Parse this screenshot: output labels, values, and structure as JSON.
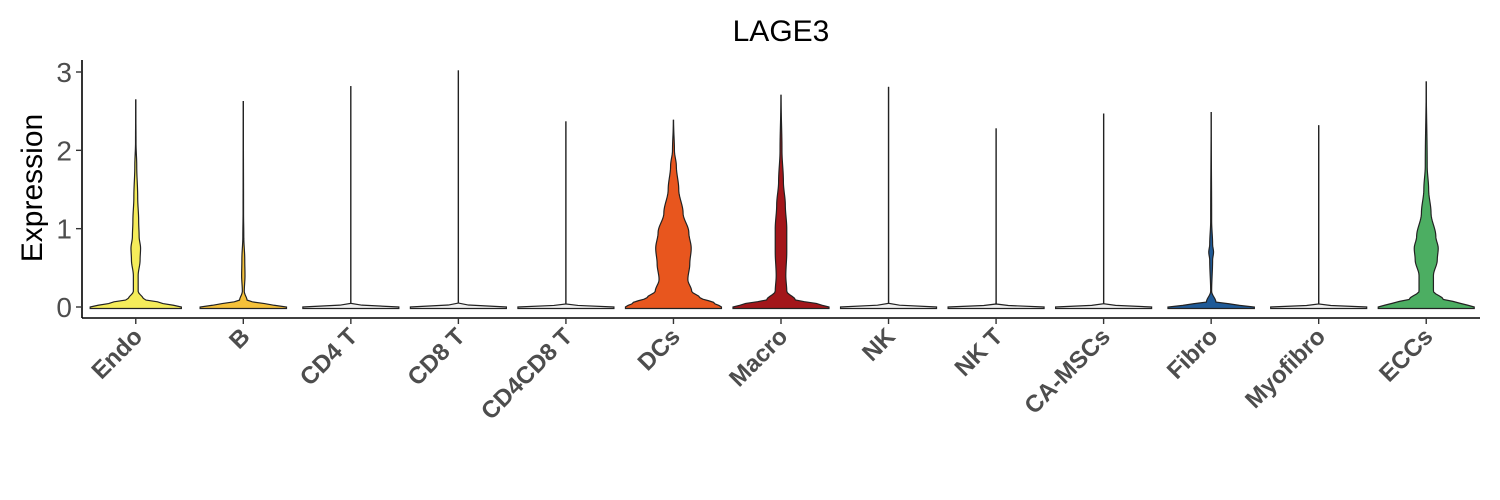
{
  "chart_data": {
    "type": "violin",
    "title": "LAGE3",
    "xlabel": "",
    "ylabel": "Expression",
    "ylim": [
      0,
      3.15
    ],
    "yticks": [
      0,
      1,
      2,
      3
    ],
    "grid": false,
    "legend": "none",
    "categories": [
      {
        "name": "Endo",
        "color": "#F5EC5A",
        "max": 2.65,
        "profile": [
          [
            0,
            0.95
          ],
          [
            0.05,
            0.55
          ],
          [
            0.1,
            0.16
          ],
          [
            0.2,
            0.05
          ],
          [
            0.4,
            0.05
          ],
          [
            0.6,
            0.09
          ],
          [
            0.75,
            0.1
          ],
          [
            0.9,
            0.07
          ],
          [
            1.1,
            0.06
          ],
          [
            1.4,
            0.04
          ],
          [
            1.8,
            0.02
          ],
          [
            2.1,
            0.005
          ],
          [
            2.65,
            0
          ]
        ]
      },
      {
        "name": "B",
        "color": "#F5C13A",
        "max": 2.63,
        "profile": [
          [
            0,
            0.9
          ],
          [
            0.04,
            0.45
          ],
          [
            0.08,
            0.08
          ],
          [
            0.2,
            0.02
          ],
          [
            0.4,
            0.035
          ],
          [
            0.6,
            0.03
          ],
          [
            0.9,
            0.01
          ],
          [
            1.2,
            0.005
          ],
          [
            2.63,
            0
          ]
        ]
      },
      {
        "name": "CD4 T",
        "color": "#F0F0F0",
        "max": 2.82,
        "profile": [
          [
            0,
            1.0
          ],
          [
            0.02,
            0.25
          ],
          [
            0.04,
            0.0
          ],
          [
            2.82,
            0
          ]
        ]
      },
      {
        "name": "CD8 T",
        "color": "#F0F0F0",
        "max": 3.02,
        "profile": [
          [
            0,
            1.0
          ],
          [
            0.02,
            0.25
          ],
          [
            0.04,
            0.0
          ],
          [
            3.02,
            0
          ]
        ]
      },
      {
        "name": "CD4CD8 T",
        "color": "#F0F0F0",
        "max": 2.37,
        "profile": [
          [
            0,
            1.0
          ],
          [
            0.02,
            0.25
          ],
          [
            0.04,
            0.0
          ],
          [
            2.37,
            0
          ]
        ]
      },
      {
        "name": "DCs",
        "color": "#E8561E",
        "max": 2.39,
        "profile": [
          [
            0,
            1.0
          ],
          [
            0.05,
            0.85
          ],
          [
            0.12,
            0.55
          ],
          [
            0.2,
            0.38
          ],
          [
            0.35,
            0.3
          ],
          [
            0.55,
            0.34
          ],
          [
            0.75,
            0.37
          ],
          [
            0.95,
            0.32
          ],
          [
            1.2,
            0.2
          ],
          [
            1.5,
            0.11
          ],
          [
            1.8,
            0.06
          ],
          [
            2.0,
            0.02
          ],
          [
            2.39,
            0
          ]
        ]
      },
      {
        "name": "Macro",
        "color": "#A3161A",
        "max": 2.71,
        "profile": [
          [
            0,
            1.0
          ],
          [
            0.04,
            0.75
          ],
          [
            0.09,
            0.3
          ],
          [
            0.2,
            0.12
          ],
          [
            0.4,
            0.1
          ],
          [
            0.7,
            0.12
          ],
          [
            1.0,
            0.12
          ],
          [
            1.3,
            0.09
          ],
          [
            1.6,
            0.05
          ],
          [
            2.0,
            0.02
          ],
          [
            2.71,
            0
          ]
        ]
      },
      {
        "name": "NK",
        "color": "#F0F0F0",
        "max": 2.81,
        "profile": [
          [
            0,
            1.0
          ],
          [
            0.02,
            0.25
          ],
          [
            0.04,
            0.0
          ],
          [
            2.81,
            0
          ]
        ]
      },
      {
        "name": "NK T",
        "color": "#F0F0F0",
        "max": 2.28,
        "profile": [
          [
            0,
            1.0
          ],
          [
            0.02,
            0.25
          ],
          [
            0.04,
            0.0
          ],
          [
            2.28,
            0
          ]
        ]
      },
      {
        "name": "CA-MSCs",
        "color": "#F0F0F0",
        "max": 2.47,
        "profile": [
          [
            0,
            1.0
          ],
          [
            0.02,
            0.25
          ],
          [
            0.04,
            0.0
          ],
          [
            2.47,
            0
          ]
        ]
      },
      {
        "name": "Fibro",
        "color": "#1F5A97",
        "max": 2.49,
        "profile": [
          [
            0,
            0.9
          ],
          [
            0.03,
            0.5
          ],
          [
            0.06,
            0.1
          ],
          [
            0.2,
            0.01
          ],
          [
            0.6,
            0.03
          ],
          [
            0.7,
            0.05
          ],
          [
            0.8,
            0.03
          ],
          [
            1.1,
            0.01
          ],
          [
            2.49,
            0
          ]
        ]
      },
      {
        "name": "Myofibro",
        "color": "#F0F0F0",
        "max": 2.32,
        "profile": [
          [
            0,
            1.0
          ],
          [
            0.02,
            0.25
          ],
          [
            0.04,
            0.0
          ],
          [
            2.32,
            0
          ]
        ]
      },
      {
        "name": "ECCs",
        "color": "#4CAE62",
        "max": 2.88,
        "profile": [
          [
            0,
            1.0
          ],
          [
            0.05,
            0.7
          ],
          [
            0.1,
            0.35
          ],
          [
            0.2,
            0.15
          ],
          [
            0.4,
            0.15
          ],
          [
            0.6,
            0.23
          ],
          [
            0.75,
            0.25
          ],
          [
            0.9,
            0.2
          ],
          [
            1.2,
            0.1
          ],
          [
            1.5,
            0.05
          ],
          [
            1.8,
            0.02
          ],
          [
            2.88,
            0
          ]
        ]
      }
    ]
  }
}
